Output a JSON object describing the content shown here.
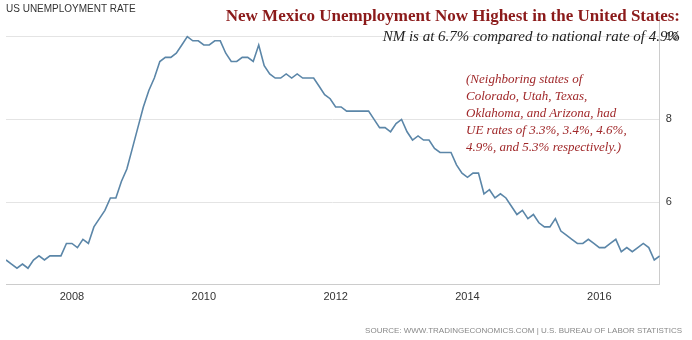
{
  "chart_data": {
    "type": "line",
    "header": "US UNEMPLOYMENT RATE",
    "title": "New Mexico Unemployment Now Highest in the United States:",
    "subtitle": "NM is at 6.7% compared to national rate of 4.9%",
    "annotation": [
      "(Neighboring states of",
      "Colorado, Utah, Texas,",
      "Oklahoma, and Arizona, had",
      "UE rates of 3.3%, 3.4%, 4.6%,",
      "4.9%, and 5.3% respectively.)"
    ],
    "source": "SOURCE: WWW.TRADINGECONOMICS.COM | U.S. BUREAU OF LABOR STATISTICS",
    "categories": [
      null,
      null,
      null,
      null,
      null,
      null,
      null,
      null,
      null,
      null,
      null,
      null,
      "2008",
      null,
      null,
      null,
      null,
      null,
      null,
      null,
      null,
      null,
      null,
      null,
      null,
      null,
      null,
      null,
      null,
      null,
      null,
      null,
      null,
      null,
      null,
      null,
      "2010",
      null,
      null,
      null,
      null,
      null,
      null,
      null,
      null,
      null,
      null,
      null,
      null,
      null,
      null,
      null,
      null,
      null,
      null,
      null,
      null,
      null,
      null,
      null,
      "2012",
      null,
      null,
      null,
      null,
      null,
      null,
      null,
      null,
      null,
      null,
      null,
      null,
      null,
      null,
      null,
      null,
      null,
      null,
      null,
      null,
      null,
      null,
      null,
      "2014",
      null,
      null,
      null,
      null,
      null,
      null,
      null,
      null,
      null,
      null,
      null,
      null,
      null,
      null,
      null,
      null,
      null,
      null,
      null,
      null,
      null,
      null,
      null,
      "2016",
      null,
      null,
      null,
      null,
      null,
      null,
      null,
      null,
      null,
      null,
      null
    ],
    "values": [
      4.6,
      4.5,
      4.4,
      4.5,
      4.4,
      4.6,
      4.7,
      4.6,
      4.7,
      4.7,
      4.7,
      5.0,
      5.0,
      4.9,
      5.1,
      5.0,
      5.4,
      5.6,
      5.8,
      6.1,
      6.1,
      6.5,
      6.8,
      7.3,
      7.8,
      8.3,
      8.7,
      9.0,
      9.4,
      9.5,
      9.5,
      9.6,
      9.8,
      10.0,
      9.9,
      9.9,
      9.8,
      9.8,
      9.9,
      9.9,
      9.6,
      9.4,
      9.4,
      9.5,
      9.5,
      9.4,
      9.8,
      9.3,
      9.1,
      9.0,
      9.0,
      9.1,
      9.0,
      9.1,
      9.0,
      9.0,
      9.0,
      8.8,
      8.6,
      8.5,
      8.3,
      8.3,
      8.2,
      8.2,
      8.2,
      8.2,
      8.2,
      8.0,
      7.8,
      7.8,
      7.7,
      7.9,
      8.0,
      7.7,
      7.5,
      7.6,
      7.5,
      7.5,
      7.3,
      7.2,
      7.2,
      7.2,
      6.9,
      6.7,
      6.6,
      6.7,
      6.7,
      6.2,
      6.3,
      6.1,
      6.2,
      6.1,
      5.9,
      5.7,
      5.8,
      5.6,
      5.7,
      5.5,
      5.4,
      5.4,
      5.6,
      5.3,
      5.2,
      5.1,
      5.0,
      5.0,
      5.1,
      5.0,
      4.9,
      4.9,
      5.0,
      5.1,
      4.8,
      4.9,
      4.8,
      4.9,
      5.0,
      4.9,
      4.6,
      4.7
    ],
    "color": "#5b86a8",
    "ylim": [
      4,
      10.5
    ],
    "yticks": [
      6,
      8,
      10
    ],
    "grid": true
  }
}
